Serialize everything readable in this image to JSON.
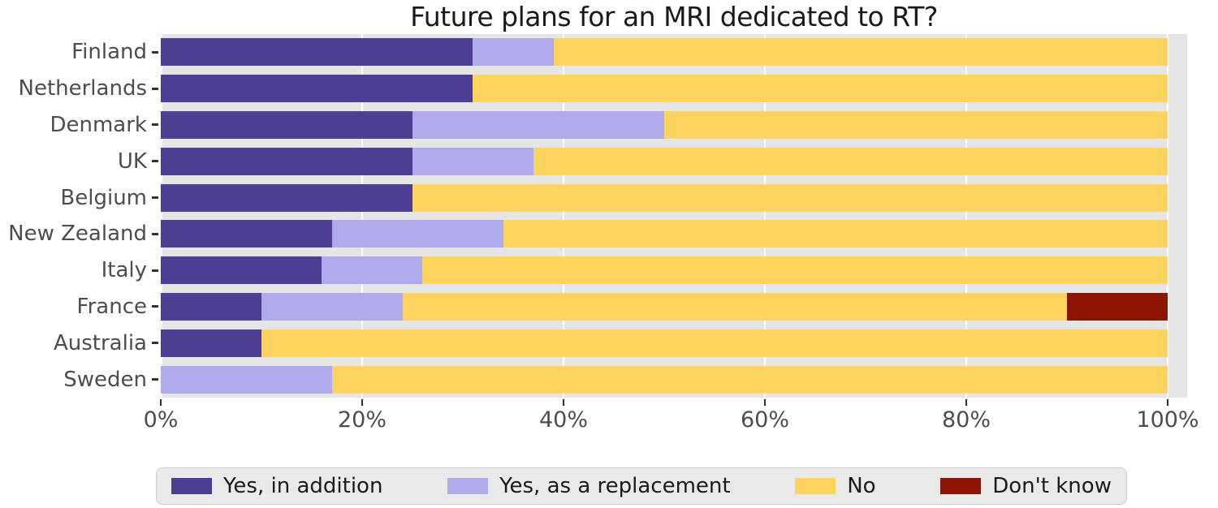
{
  "title": "Future plans for an MRI dedicated to RT?",
  "chart_data": {
    "type": "bar",
    "stacked": true,
    "orientation": "horizontal",
    "title": "Future plans for an MRI dedicated to RT?",
    "xlabel": "",
    "ylabel": "",
    "xlim": [
      0,
      100
    ],
    "grid": true,
    "legend_position": "bottom",
    "x_tick_labels": [
      "0%",
      "20%",
      "40%",
      "60%",
      "80%",
      "100%"
    ],
    "x_tick_positions": [
      0,
      20,
      40,
      60,
      80,
      100
    ],
    "categories": [
      "Finland",
      "Netherlands",
      "Denmark",
      "UK",
      "Belgium",
      "New Zealand",
      "Italy",
      "France",
      "Australia",
      "Sweden"
    ],
    "series": [
      {
        "name": "Yes, in addition",
        "color": "#4d3e94",
        "values": [
          31,
          31,
          25,
          25,
          25,
          17,
          16,
          10,
          10,
          0
        ]
      },
      {
        "name": "Yes, as a replacement",
        "color": "#afaaea",
        "values": [
          8,
          0,
          25,
          12,
          0,
          17,
          10,
          14,
          0,
          17
        ]
      },
      {
        "name": "No",
        "color": "#fed35e",
        "values": [
          61,
          69,
          50,
          63,
          75,
          66,
          74,
          66,
          90,
          83
        ]
      },
      {
        "name": "Don't know",
        "color": "#8e1402",
        "values": [
          0,
          0,
          0,
          0,
          0,
          0,
          0,
          10,
          0,
          0
        ]
      }
    ],
    "colors": {
      "plot_background": "#e5e5e5",
      "gridline": "#ffffff",
      "tick_text": "#4d4d4d",
      "title_text": "#1a1a1a",
      "legend_background": "#eaeaea"
    }
  }
}
